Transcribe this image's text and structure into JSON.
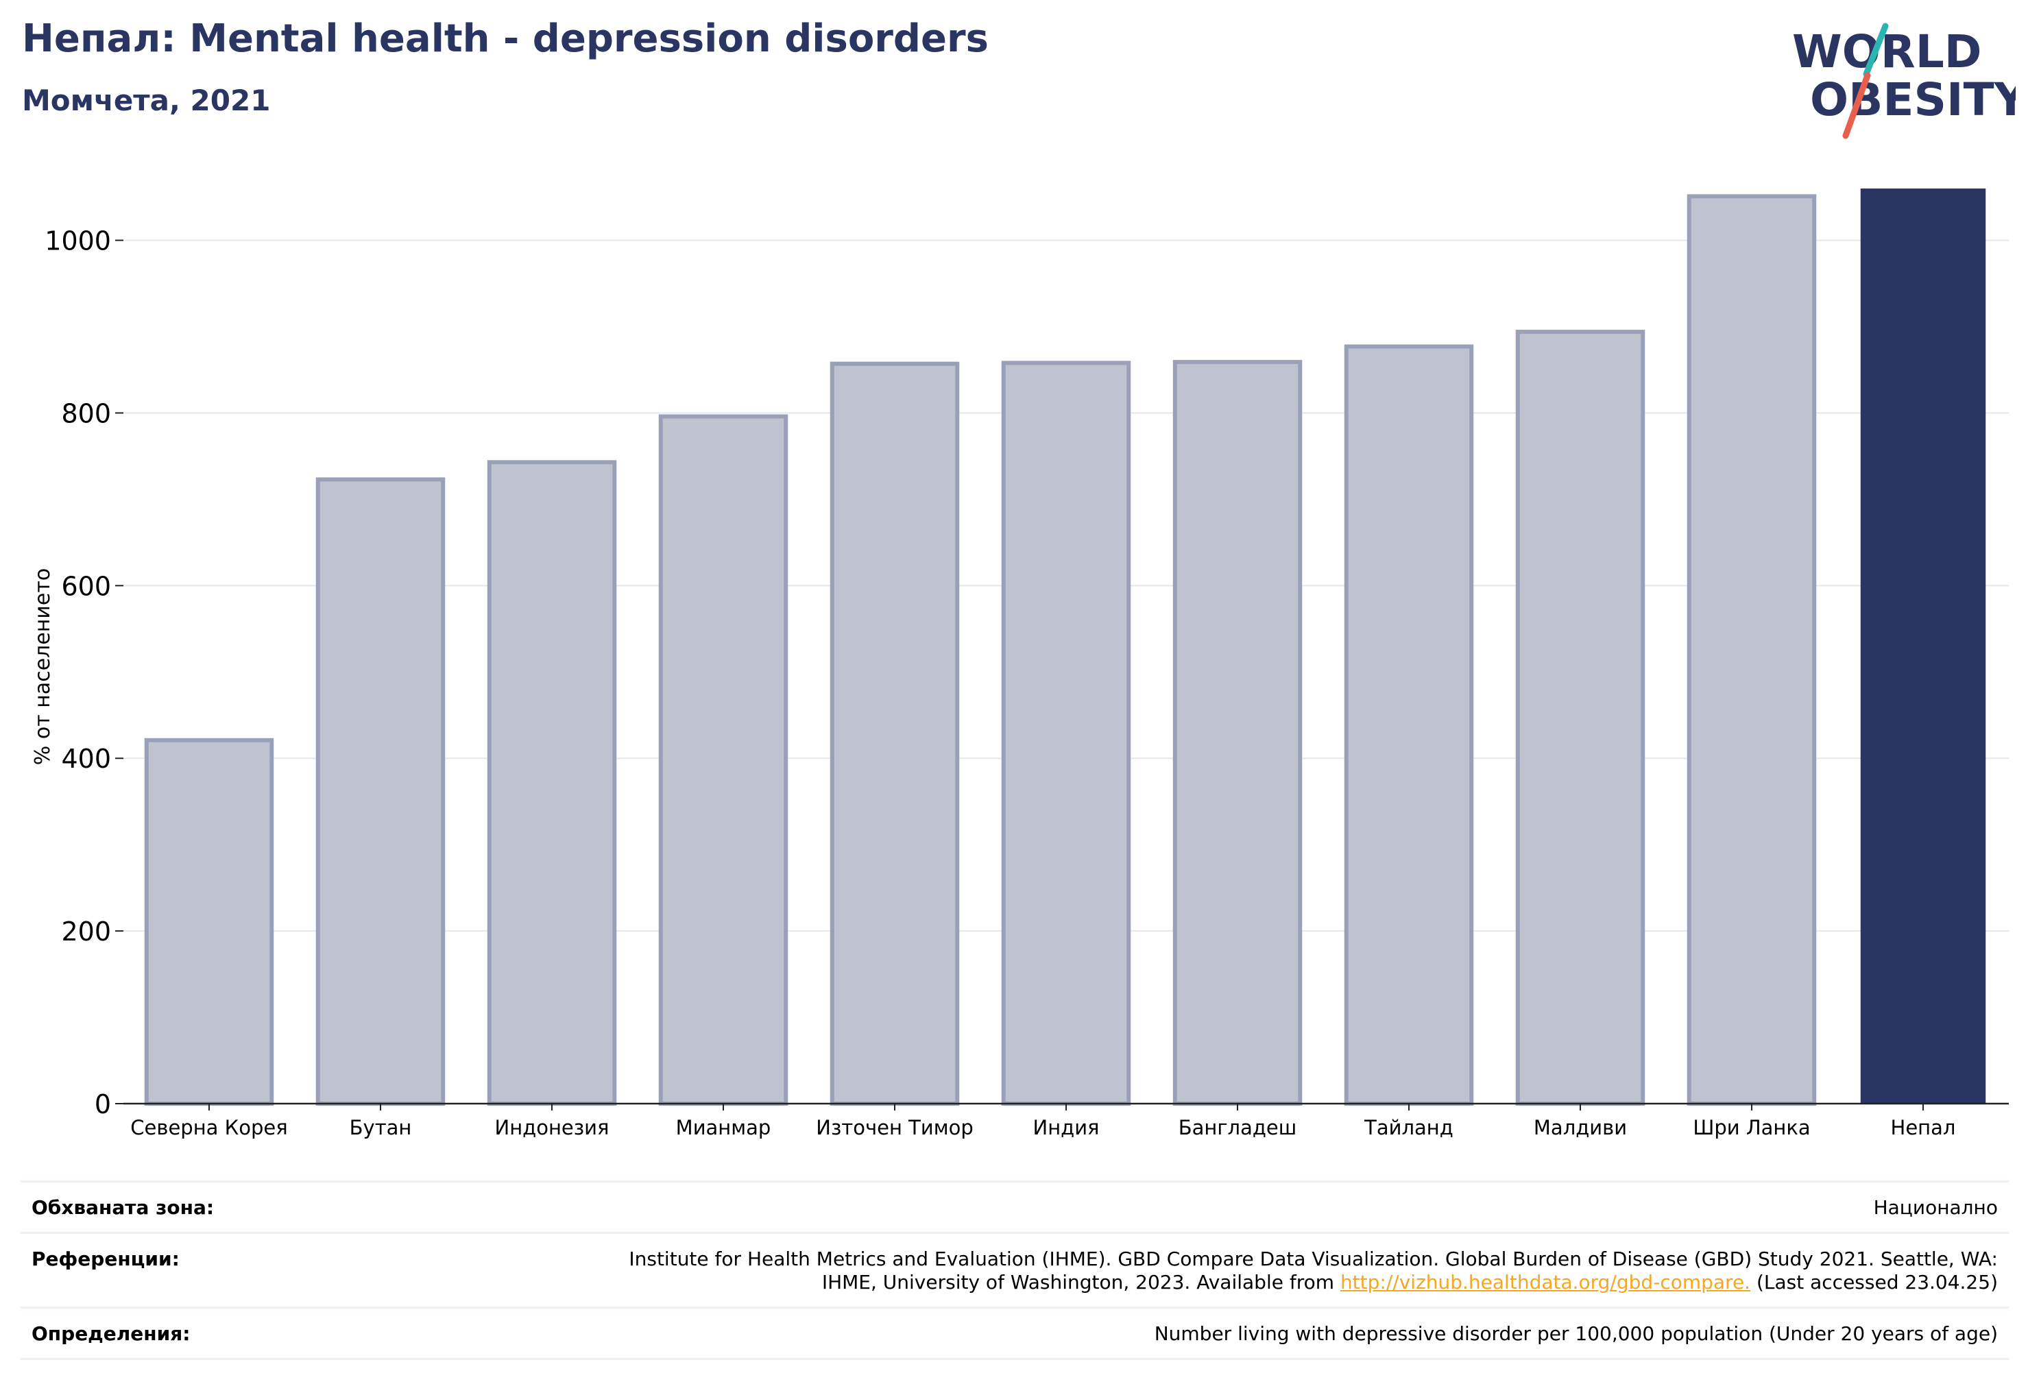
{
  "header": {
    "title": "Непал: Mental health - depression disorders",
    "subtitle": "Момчета, 2021"
  },
  "logo": {
    "line1": "WORLD",
    "line2": "OBESITY",
    "colors": {
      "text": "#2a3561",
      "slash_top": "#2bb5b0",
      "slash_bottom": "#e8604c"
    }
  },
  "colors": {
    "bar": "#bfc3d0",
    "bar_border": "#9aa0b8",
    "highlight": "#2a3561",
    "grid": "#e6e7ec",
    "axis": "#222222"
  },
  "chart_data": {
    "type": "bar",
    "categories": [
      "Северна Корея",
      "Бутан",
      "Индонезия",
      "Мианмар",
      "Източен Тимор",
      "Индия",
      "Бангладеш",
      "Тайланд",
      "Малдиви",
      "Шри Ланка",
      "Непал"
    ],
    "values": [
      421,
      723,
      743,
      796,
      857,
      858,
      859,
      877,
      894,
      1051,
      1060
    ],
    "highlight_index": 10,
    "ylabel": "% от населението",
    "yticks": [
      0,
      200,
      400,
      600,
      800,
      1000
    ],
    "ylim": [
      0,
      1060
    ],
    "grid": true
  },
  "info": {
    "coverage_label": "Обхваната зона:",
    "coverage_value": "Национално",
    "references_label": "Референции:",
    "references_text_1": "Institute for Health Metrics and Evaluation (IHME). GBD Compare Data Visualization. Global Burden of Disease (GBD) Study 2021. Seattle, WA: IHME, University of Washington, 2023. Available from ",
    "references_link": "http://vizhub.healthdata.org/gbd-compare.",
    "references_text_2": " (Last accessed 23.04.25)",
    "definitions_label": "Определения:",
    "definitions_value": "Number living with depressive disorder per 100,000 population (Under 20 years of age)"
  }
}
